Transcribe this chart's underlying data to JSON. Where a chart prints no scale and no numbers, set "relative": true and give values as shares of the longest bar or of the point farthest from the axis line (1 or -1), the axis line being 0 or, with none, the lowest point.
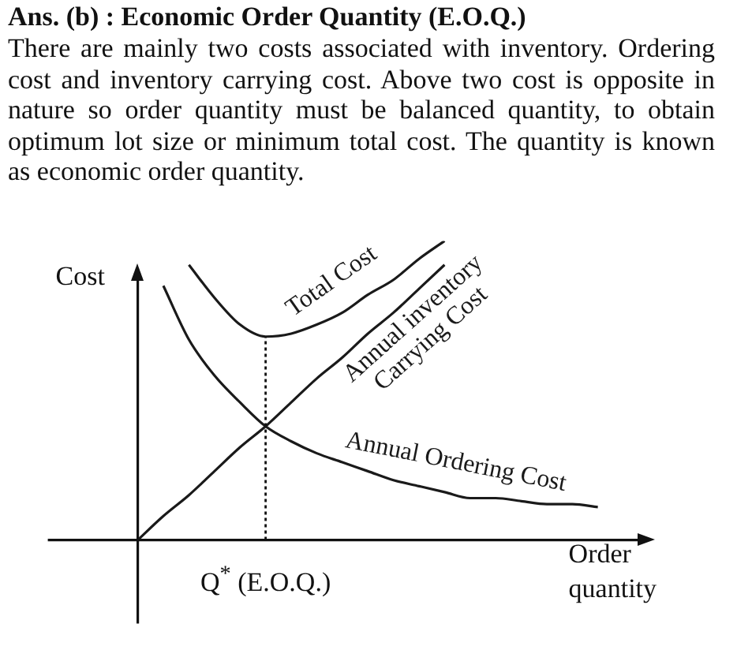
{
  "chart_data": {
    "type": "line",
    "title": "Ans. (b) : Economic Order Quantity (E.O.Q.)",
    "subtitle": "There are mainly two costs associated with inventory. Ordering cost and inventory carrying cost. Above two cost is opposite in nature so order quantity must be balanced quantity, to obtain optimum lot size or minimum total cost. The quantity is known as economic order quantity.",
    "xlabel": "Order quantity",
    "ylabel": "Cost",
    "relative": true,
    "categories": [
      null,
      null,
      null,
      null,
      null,
      null,
      null,
      null,
      null,
      null,
      null,
      null,
      null,
      null,
      null,
      null,
      null,
      null,
      null
    ],
    "annotations": [
      "Q$^{*}$ (E.O.Q.)"
    ],
    "series": [
      {
        "name": "Total Cost",
        "color": "#1a1a1a",
        "values": [
          null,
          null,
          0.92,
          0.81,
          0.72,
          0.68,
          0.69,
          0.72,
          0.76,
          0.82,
          0.87,
          0.94,
          1,
          null,
          null,
          null,
          null,
          null,
          null
        ]
      },
      {
        "name": "Annual inventory Carrying Cost",
        "color": "#1a1a1a",
        "values": [
          0,
          0.08,
          0.15,
          0.23,
          0.31,
          0.38,
          0.46,
          0.54,
          0.61,
          0.69,
          0.76,
          0.84,
          0.92,
          null,
          null,
          null,
          null,
          null,
          null
        ]
      },
      {
        "name": "Annual Ordering Cost",
        "color": "#1a1a1a",
        "values": [
          null,
          0.85,
          0.67,
          0.55,
          0.46,
          0.38,
          0.33,
          0.29,
          0.26,
          0.23,
          0.2,
          0.18,
          0.16,
          0.14,
          0.14,
          0.13,
          0.12,
          0.12,
          0.11
        ]
      }
    ],
    "legend": false,
    "grid": false,
    "marker": "none",
    "line_style": "solid"
  }
}
